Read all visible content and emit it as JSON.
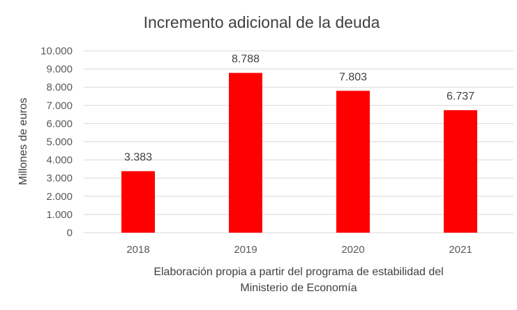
{
  "chart_data": {
    "type": "bar",
    "title": "Incremento adicional de la deuda",
    "categories": [
      "2018",
      "2019",
      "2020",
      "2021"
    ],
    "values": [
      3383,
      8788,
      7803,
      6737
    ],
    "value_labels": [
      "3.383",
      "8.788",
      "7.803",
      "6.737"
    ],
    "ylabel": "Millones de euros",
    "xlabel_lines": [
      "Elaboración propia a partir del programa de estabilidad del",
      "Ministerio de Economía"
    ],
    "ylim": [
      0,
      10000
    ],
    "y_ticks": [
      0,
      1000,
      2000,
      3000,
      4000,
      5000,
      6000,
      7000,
      8000,
      9000,
      10000
    ],
    "y_tick_labels": [
      "0",
      "1.000",
      "2.000",
      "3.000",
      "4.000",
      "5.000",
      "6.000",
      "7.000",
      "8.000",
      "9.000",
      "10.000"
    ],
    "grid": true,
    "bar_color": "#ff0000"
  }
}
